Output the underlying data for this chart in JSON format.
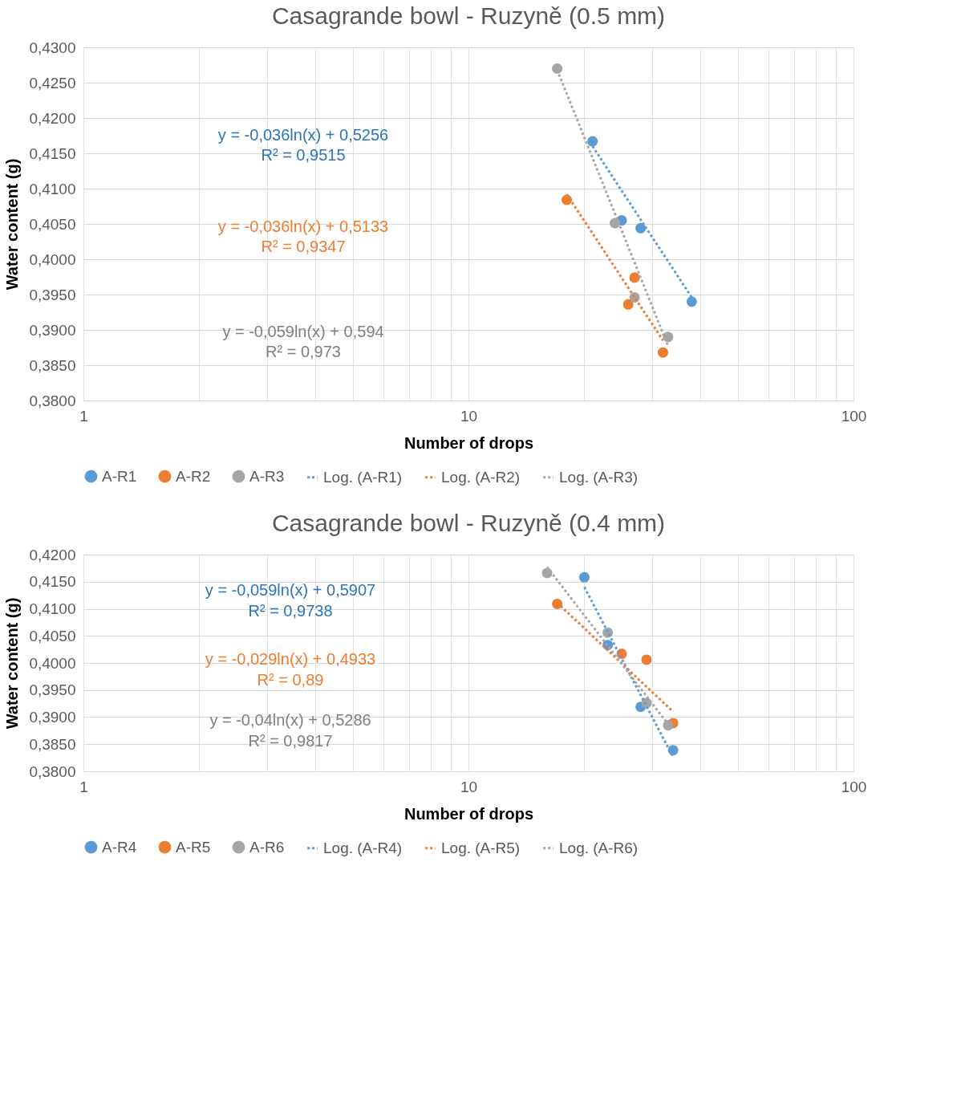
{
  "chart_data": [
    {
      "type": "scatter",
      "title": "Casagrande bowl - Ruzyně (0.5 mm)",
      "xlabel": "Number of drops",
      "ylabel": "Water content (g)",
      "log": "x",
      "grid": true,
      "legend": "bottom",
      "xlim": [
        1,
        100
      ],
      "xticks": [
        1,
        {
          "value": 2,
          "label": null
        },
        {
          "value": 3,
          "label": null
        },
        {
          "value": 4,
          "label": null
        },
        {
          "value": 5,
          "label": null
        },
        {
          "value": 6,
          "label": null
        },
        {
          "value": 7,
          "label": null
        },
        {
          "value": 8,
          "label": null
        },
        {
          "value": 9,
          "label": null
        },
        10,
        {
          "value": 20,
          "label": null
        },
        {
          "value": 30,
          "label": null
        },
        {
          "value": 40,
          "label": null
        },
        {
          "value": 50,
          "label": null
        },
        {
          "value": 60,
          "label": null
        },
        {
          "value": 70,
          "label": null
        },
        {
          "value": 80,
          "label": null
        },
        {
          "value": 90,
          "label": null
        },
        100
      ],
      "ylim": [
        0.38,
        0.43
      ],
      "yticks": [
        {
          "value": 0.38,
          "label": "0,3800"
        },
        {
          "value": 0.385,
          "label": "0,3850"
        },
        {
          "value": 0.39,
          "label": "0,3900"
        },
        {
          "value": 0.395,
          "label": "0,3950"
        },
        {
          "value": 0.4,
          "label": "0,4000"
        },
        {
          "value": 0.405,
          "label": "0,4050"
        },
        {
          "value": 0.41,
          "label": "0,4100"
        },
        {
          "value": 0.415,
          "label": "0,4150"
        },
        {
          "value": 0.42,
          "label": "0,4200"
        },
        {
          "value": 0.425,
          "label": "0,4250"
        },
        {
          "value": 0.43,
          "label": "0,4300"
        }
      ],
      "series": [
        {
          "name": "A-R1",
          "marker": "circle",
          "color": "#5b9bd5",
          "x": [
            21,
            25,
            28,
            38
          ],
          "values": [
            0.4167,
            0.4055,
            0.4044,
            0.394
          ]
        },
        {
          "name": "A-R2",
          "marker": "circle",
          "color": "#ed7d31",
          "x": [
            18,
            27,
            26,
            32
          ],
          "values": [
            0.4084,
            0.3974,
            0.3936,
            0.3868
          ]
        },
        {
          "name": "A-R3",
          "marker": "circle",
          "color": "#a5a5a5",
          "x": [
            17,
            24,
            27,
            33
          ],
          "values": [
            0.427,
            0.4051,
            0.3946,
            0.389
          ]
        },
        {
          "name": "Log. (A-R1)",
          "type": "line",
          "line_style": "dotted",
          "marker": "none",
          "color": "#5b9bd5",
          "x": [
            21,
            38
          ],
          "values": [
            0.416,
            0.3946
          ]
        },
        {
          "name": "Log. (A-R2)",
          "type": "line",
          "line_style": "dotted",
          "marker": "none",
          "color": "#ed7d31",
          "x": [
            18,
            32
          ],
          "values": [
            0.4092,
            0.3885
          ]
        },
        {
          "name": "Log. (A-R3)",
          "type": "line",
          "line_style": "dotted",
          "marker": "none",
          "color": "#a5a5a5",
          "x": [
            17,
            33
          ],
          "values": [
            0.4268,
            0.3877
          ]
        }
      ],
      "annotations": [
        "y = -0,036ln(x) + 0,5256",
        "R² = 0,9515",
        "y = -0,036ln(x) + 0,5133",
        "R² = 0,9347",
        "y = -0,059ln(x) + 0,594",
        "R² = 0,973"
      ]
    },
    {
      "type": "scatter",
      "title": "Casagrande bowl - Ruzyně (0.4 mm)",
      "xlabel": "Number of drops",
      "ylabel": "Water content (g)",
      "log": "x",
      "grid": true,
      "legend": "bottom",
      "xlim": [
        1,
        100
      ],
      "xticks": [
        1,
        {
          "value": 2,
          "label": null
        },
        {
          "value": 3,
          "label": null
        },
        {
          "value": 4,
          "label": null
        },
        {
          "value": 5,
          "label": null
        },
        {
          "value": 6,
          "label": null
        },
        {
          "value": 7,
          "label": null
        },
        {
          "value": 8,
          "label": null
        },
        {
          "value": 9,
          "label": null
        },
        10,
        {
          "value": 20,
          "label": null
        },
        {
          "value": 30,
          "label": null
        },
        {
          "value": 40,
          "label": null
        },
        {
          "value": 50,
          "label": null
        },
        {
          "value": 60,
          "label": null
        },
        {
          "value": 70,
          "label": null
        },
        {
          "value": 80,
          "label": null
        },
        {
          "value": 90,
          "label": null
        },
        100
      ],
      "ylim": [
        0.38,
        0.42
      ],
      "yticks": [
        {
          "value": 0.38,
          "label": "0,3800"
        },
        {
          "value": 0.385,
          "label": "0,3850"
        },
        {
          "value": 0.39,
          "label": "0,3900"
        },
        {
          "value": 0.395,
          "label": "0,3950"
        },
        {
          "value": 0.4,
          "label": "0,4000"
        },
        {
          "value": 0.405,
          "label": "0,4050"
        },
        {
          "value": 0.41,
          "label": "0,4100"
        },
        {
          "value": 0.415,
          "label": "0,4150"
        },
        {
          "value": 0.42,
          "label": "0,4200"
        }
      ],
      "series": [
        {
          "name": "A-R4",
          "marker": "circle",
          "color": "#5b9bd5",
          "x": [
            20,
            23,
            28,
            34
          ],
          "values": [
            0.4158,
            0.4033,
            0.3919,
            0.3839
          ]
        },
        {
          "name": "A-R5",
          "marker": "circle",
          "color": "#ed7d31",
          "x": [
            17,
            25,
            29,
            34
          ],
          "values": [
            0.4109,
            0.4017,
            0.4006,
            0.3889
          ]
        },
        {
          "name": "A-R6",
          "marker": "circle",
          "color": "#a5a5a5",
          "x": [
            16,
            23,
            29,
            33
          ],
          "values": [
            0.4166,
            0.4056,
            0.3926,
            0.3885
          ]
        },
        {
          "name": "Log. (A-R4)",
          "type": "line",
          "line_style": "dotted",
          "marker": "none",
          "color": "#5b9bd5",
          "x": [
            20,
            34
          ],
          "values": [
            0.414,
            0.3826
          ]
        },
        {
          "name": "Log. (A-R5)",
          "type": "line",
          "line_style": "dotted",
          "marker": "none",
          "color": "#ed7d31",
          "x": [
            17,
            34
          ],
          "values": [
            0.4111,
            0.391
          ]
        },
        {
          "name": "Log. (A-R6)",
          "type": "line",
          "line_style": "dotted",
          "marker": "none",
          "color": "#a5a5a5",
          "x": [
            16,
            33
          ],
          "values": [
            0.4177,
            0.3887
          ]
        }
      ],
      "annotations": [
        "y = -0,059ln(x) + 0,5907",
        "R² = 0,9738",
        "y = -0,029ln(x) + 0,4933",
        "R² = 0,89",
        "y = -0,04ln(x) + 0,5286",
        "R² = 0,9817"
      ]
    }
  ]
}
